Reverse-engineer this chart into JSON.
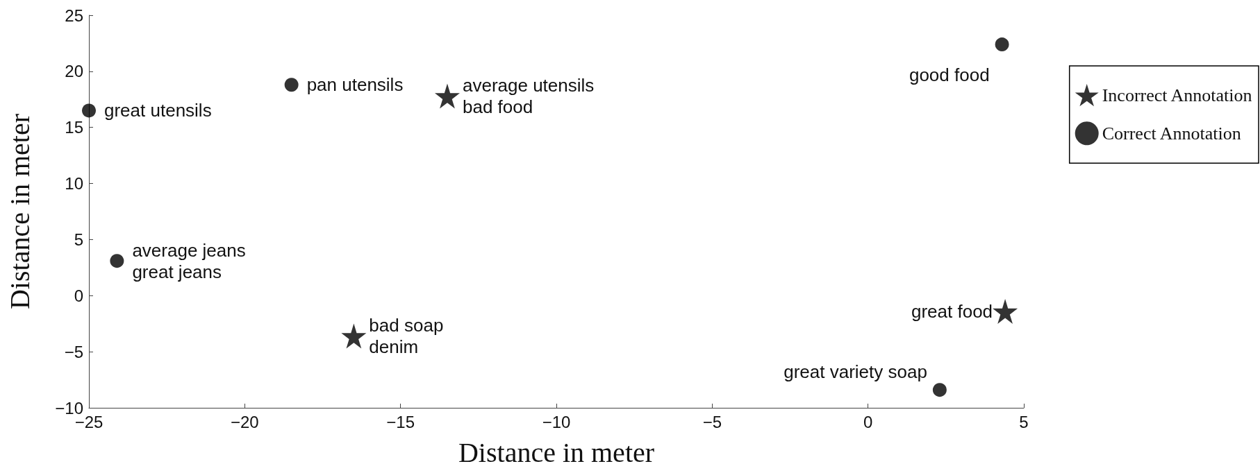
{
  "chart_data": {
    "type": "scatter",
    "xlabel": "Distance in meter",
    "ylabel": "Distance in meter",
    "series": [
      {
        "name": "Incorrect Annotation",
        "color": "#000000",
        "marker": "star",
        "x": [
          -13.5,
          -16.5,
          4.4
        ],
        "values": [
          17.8,
          -3.6,
          -1.4
        ]
      },
      {
        "name": "Correct Annotation",
        "color": "#000000",
        "marker": "circle",
        "x": [
          -25.0,
          -18.5,
          4.3,
          -24.1,
          2.3
        ],
        "values": [
          16.5,
          18.8,
          22.4,
          3.1,
          -8.4
        ]
      }
    ],
    "annotations": [
      {
        "text": "great utensils",
        "x": -25.0,
        "y": 16.5
      },
      {
        "text": "pan utensils",
        "x": -18.5,
        "y": 18.8
      },
      {
        "text": "average utensils",
        "x": -13.5,
        "y": 17.8
      },
      {
        "text": "bad food",
        "x": -13.5,
        "y": 17.8
      },
      {
        "text": "good food",
        "x": 4.3,
        "y": 22.4
      },
      {
        "text": "average jeans",
        "x": -24.1,
        "y": 3.1
      },
      {
        "text": "great jeans",
        "x": -24.1,
        "y": 3.1
      },
      {
        "text": "bad soap",
        "x": -16.5,
        "y": -3.6
      },
      {
        "text": "denim",
        "x": -16.5,
        "y": -3.6
      },
      {
        "text": "great food",
        "x": 4.4,
        "y": -1.4
      },
      {
        "text": "great variety soap",
        "x": 2.3,
        "y": -8.4
      }
    ],
    "xlim": [
      -25,
      5
    ],
    "xticks": [
      -25,
      -20,
      -15,
      -10,
      -5,
      0,
      5
    ],
    "ylim": [
      -10,
      25
    ],
    "yticks": [
      -10,
      -5,
      0,
      5,
      10,
      15,
      20,
      25
    ],
    "grid": false,
    "legend": "top right"
  }
}
